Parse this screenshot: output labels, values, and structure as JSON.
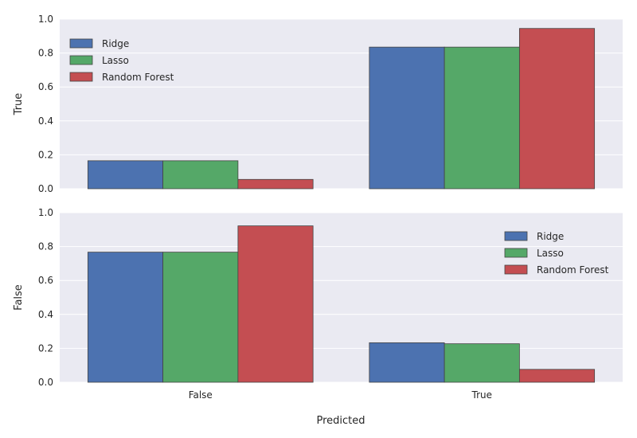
{
  "chart_data": [
    {
      "type": "bar",
      "panel": "top",
      "ylabel": "True",
      "xlabel": "",
      "categories": [
        "False",
        "True"
      ],
      "show_x_tick_labels": false,
      "yticks": [
        "0.0",
        "0.2",
        "0.4",
        "0.6",
        "0.8",
        "1.0"
      ],
      "ylim": [
        0,
        1
      ],
      "grid": true,
      "legend_position": "upper-left",
      "series": [
        {
          "name": "Ridge",
          "color": "#4c72b0",
          "values": [
            0.165,
            0.835
          ]
        },
        {
          "name": "Lasso",
          "color": "#55a868",
          "values": [
            0.165,
            0.835
          ]
        },
        {
          "name": "Random Forest",
          "color": "#c44e52",
          "values": [
            0.055,
            0.945
          ]
        }
      ]
    },
    {
      "type": "bar",
      "panel": "bottom",
      "ylabel": "False",
      "xlabel": "Predicted",
      "categories": [
        "False",
        "True"
      ],
      "show_x_tick_labels": true,
      "yticks": [
        "0.0",
        "0.2",
        "0.4",
        "0.6",
        "0.8",
        "1.0"
      ],
      "ylim": [
        0,
        1
      ],
      "grid": true,
      "legend_position": "upper-right",
      "series": [
        {
          "name": "Ridge",
          "color": "#4c72b0",
          "values": [
            0.767,
            0.233
          ]
        },
        {
          "name": "Lasso",
          "color": "#55a868",
          "values": [
            0.767,
            0.227
          ]
        },
        {
          "name": "Random Forest",
          "color": "#c44e52",
          "values": [
            0.922,
            0.076
          ]
        }
      ]
    }
  ],
  "colors": {
    "panel_bg": "#eaeaf2",
    "grid": "#ffffff",
    "text": "#262626"
  }
}
